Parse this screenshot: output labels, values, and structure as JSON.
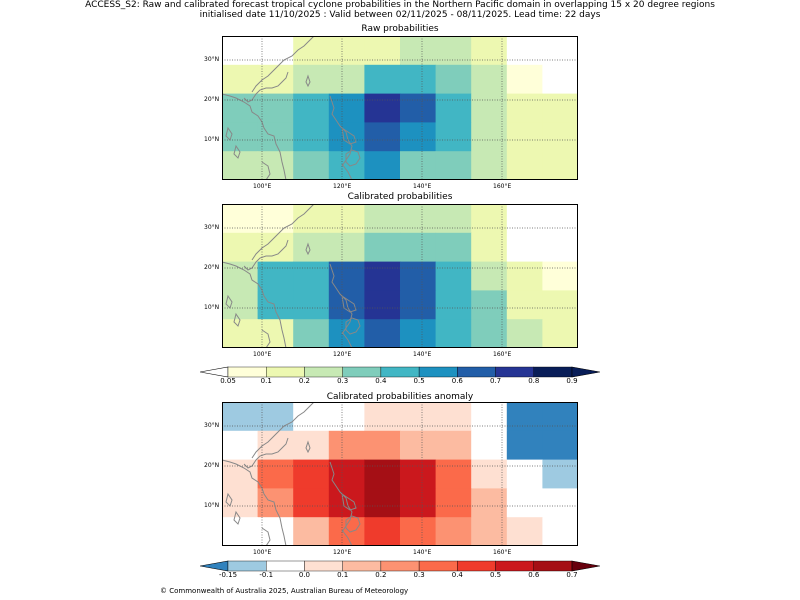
{
  "title": {
    "line1": "ACCESS_S2: Raw and calibrated forecast tropical cyclone probabilities in the Northern Pacific domain in overlapping 15 x 20 degree regions",
    "line2": "initialised date 11/10/2025 :  Valid between 02/11/2025 - 08/11/2025. Lead time: 22 days"
  },
  "axes": {
    "lon_ticks": [
      "100°E",
      "120°E",
      "140°E",
      "160°E"
    ],
    "lat_ticks": [
      "30°N",
      "20°N",
      "10°N"
    ]
  },
  "panels": [
    {
      "title": "Raw probabilities",
      "colormap": "prob",
      "grid_levels": [
        [
          0,
          0,
          2,
          2,
          2,
          3,
          3,
          2,
          0,
          0
        ],
        [
          2,
          2,
          3,
          3,
          5,
          5,
          4,
          3,
          1,
          0
        ],
        [
          4,
          4,
          5,
          6,
          8,
          7,
          5,
          3,
          2,
          2
        ],
        [
          4,
          4,
          5,
          6,
          7,
          6,
          5,
          3,
          2,
          2
        ],
        [
          3,
          3,
          4,
          5,
          6,
          4,
          4,
          3,
          2,
          2
        ]
      ]
    },
    {
      "title": "Calibrated probabilities",
      "colormap": "prob",
      "grid_levels": [
        [
          1,
          1,
          2,
          2,
          3,
          3,
          3,
          2,
          0,
          0
        ],
        [
          2,
          2,
          3,
          3,
          4,
          4,
          4,
          2,
          0,
          0
        ],
        [
          3,
          5,
          5,
          7,
          8,
          7,
          5,
          3,
          2,
          1
        ],
        [
          3,
          5,
          5,
          7,
          8,
          7,
          5,
          4,
          2,
          2
        ],
        [
          2,
          2,
          4,
          6,
          7,
          6,
          5,
          4,
          3,
          2
        ]
      ]
    },
    {
      "title": "Calibrated probabilities anomaly",
      "colormap": "anom",
      "grid_levels": [
        [
          1,
          1,
          2,
          2,
          3,
          3,
          3,
          2,
          0,
          0
        ],
        [
          2,
          3,
          3,
          5,
          5,
          4,
          4,
          2,
          0,
          0
        ],
        [
          3,
          6,
          7,
          8,
          9,
          8,
          6,
          3,
          2,
          1
        ],
        [
          3,
          5,
          7,
          8,
          9,
          8,
          6,
          4,
          2,
          2
        ],
        [
          2,
          2,
          4,
          6,
          7,
          6,
          5,
          4,
          3,
          2
        ]
      ]
    }
  ],
  "colorbars": {
    "prob": {
      "labels": [
        "0.05",
        "0.1",
        "0.2",
        "0.3",
        "0.4",
        "0.5",
        "0.6",
        "0.7",
        "0.8",
        "0.9"
      ],
      "colors": [
        "#ffffff",
        "#ffffd9",
        "#edf8b1",
        "#c7e9b4",
        "#7fcdbb",
        "#41b6c4",
        "#1d91c0",
        "#225ea8",
        "#253494",
        "#081d58"
      ]
    },
    "anom": {
      "labels": [
        "-0.15",
        "-0.1",
        "0.0",
        "0.1",
        "0.2",
        "0.3",
        "0.4",
        "0.5",
        "0.6",
        "0.7"
      ],
      "colors": [
        "#3182bd",
        "#9ecae1",
        "#ffffff",
        "#fee0d2",
        "#fcbba1",
        "#fc9272",
        "#fb6a4a",
        "#ef3b2c",
        "#cb181d",
        "#a50f15",
        "#67000d"
      ]
    }
  },
  "footer": "© Commonwealth of Australia 2025, Australian Bureau of Meteorology"
}
